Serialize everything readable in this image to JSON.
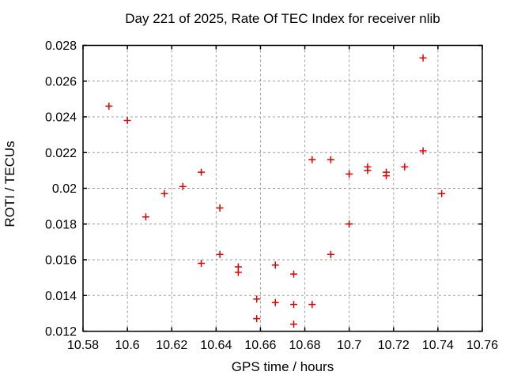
{
  "chart_data": {
    "type": "scatter",
    "title": "Day 221 of 2025, Rate Of TEC Index for receiver nlib",
    "xlabel": "GPS time / hours",
    "ylabel": "ROTI / TECUs",
    "xlim": [
      10.58,
      10.76
    ],
    "ylim": [
      0.012,
      0.028
    ],
    "x_ticks": [
      10.58,
      10.6,
      10.62,
      10.64,
      10.66,
      10.68,
      10.7,
      10.72,
      10.74,
      10.76
    ],
    "x_tick_labels": [
      "10.58",
      "10.6",
      "10.62",
      "10.64",
      "10.66",
      "10.68",
      "10.7",
      "10.72",
      "10.74",
      "10.76"
    ],
    "y_ticks": [
      0.012,
      0.014,
      0.016,
      0.018,
      0.02,
      0.022,
      0.024,
      0.026,
      0.028
    ],
    "y_tick_labels": [
      "0.012",
      "0.014",
      "0.016",
      "0.018",
      "0.02",
      "0.022",
      "0.024",
      "0.026",
      "0.028"
    ],
    "grid": true,
    "legend": "none",
    "marker": {
      "shape": "plus",
      "color": "#e00000",
      "size": 9
    },
    "colors": {
      "grid": "#9c9c9c",
      "border": "#000000",
      "background": "#ffffff",
      "text": "#000000"
    },
    "series": [
      {
        "name": "ROTI",
        "points": [
          [
            10.5917,
            0.0246
          ],
          [
            10.6,
            0.0238
          ],
          [
            10.6083,
            0.0184
          ],
          [
            10.6167,
            0.0197
          ],
          [
            10.625,
            0.0201
          ],
          [
            10.6333,
            0.0209
          ],
          [
            10.6333,
            0.0158
          ],
          [
            10.6417,
            0.0189
          ],
          [
            10.6417,
            0.0163
          ],
          [
            10.65,
            0.0156
          ],
          [
            10.65,
            0.0153
          ],
          [
            10.6583,
            0.0138
          ],
          [
            10.6583,
            0.0127
          ],
          [
            10.6667,
            0.0157
          ],
          [
            10.6667,
            0.0136
          ],
          [
            10.675,
            0.0152
          ],
          [
            10.675,
            0.0135
          ],
          [
            10.675,
            0.0124
          ],
          [
            10.6833,
            0.0216
          ],
          [
            10.6833,
            0.0135
          ],
          [
            10.6917,
            0.0216
          ],
          [
            10.6917,
            0.0163
          ],
          [
            10.7,
            0.0208
          ],
          [
            10.7,
            0.018
          ],
          [
            10.7083,
            0.0212
          ],
          [
            10.7083,
            0.021
          ],
          [
            10.7167,
            0.0209
          ],
          [
            10.7167,
            0.0207
          ],
          [
            10.725,
            0.0212
          ],
          [
            10.7333,
            0.0273
          ],
          [
            10.7333,
            0.0221
          ],
          [
            10.7417,
            0.0197
          ]
        ]
      }
    ]
  }
}
